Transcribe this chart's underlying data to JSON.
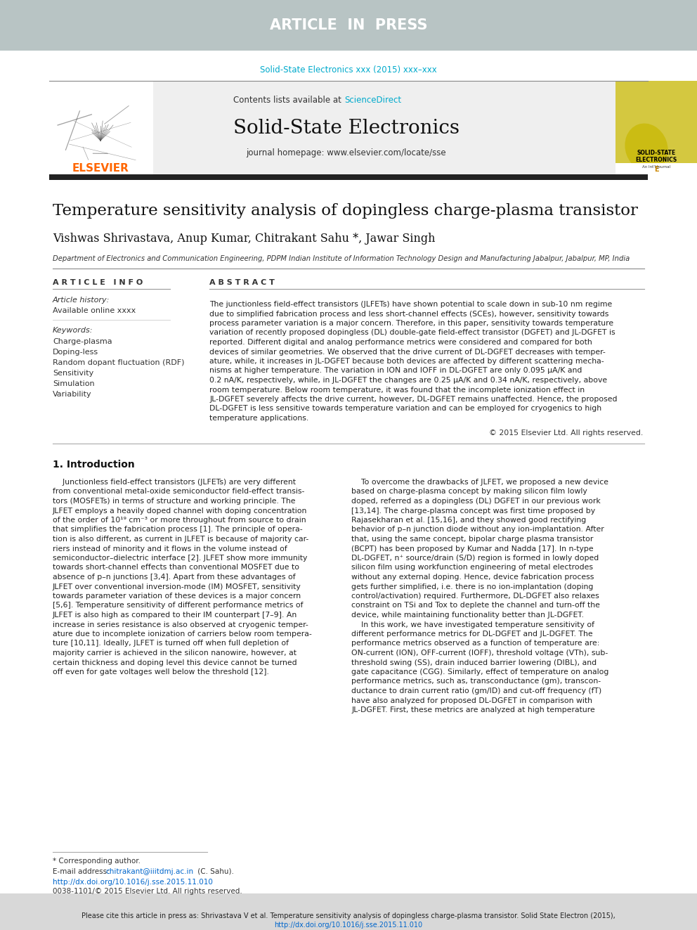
{
  "page_bg": "#ffffff",
  "header_bar_bg": "#b8c4c4",
  "header_text": "ARTICLE  IN  PRESS",
  "header_text_color": "#ffffff",
  "journal_ref_text": "Solid-State Electronics xxx (2015) xxx–xxx",
  "journal_ref_color": "#00aacc",
  "contents_text": "Contents lists available at ",
  "sciencedirect_text": "ScienceDirect",
  "sciencedirect_color": "#00aacc",
  "journal_name": "Solid-State Electronics",
  "journal_homepage": "journal homepage: www.elsevier.com/locate/sse",
  "thick_bar_color": "#222222",
  "article_title": "Temperature sensitivity analysis of dopingless charge-plasma transistor",
  "authors": "Vishwas Shrivastava, Anup Kumar, Chitrakant Sahu *, Jawar Singh",
  "affiliation": "Department of Electronics and Communication Engineering, PDPM Indian Institute of Information Technology Design and Manufacturing Jabalpur, Jabalpur, MP, India",
  "article_info_header": "A R T I C L E   I N F O",
  "abstract_header": "A B S T R A C T",
  "article_history_label": "Article history:",
  "available_online": "Available online xxxx",
  "keywords_label": "Keywords:",
  "keywords": [
    "Charge-plasma",
    "Doping-less",
    "Random dopant fluctuation (RDF)",
    "Sensitivity",
    "Simulation",
    "Variability"
  ],
  "copyright_text": "© 2015 Elsevier Ltd. All rights reserved.",
  "intro_header": "1. Introduction",
  "footer_bg": "#d8d8d8",
  "footer_text1": "Please cite this article in press as: Shrivastava V et al. Temperature sensitivity analysis of dopingless charge-plasma transistor. Solid State Electron (2015),",
  "footer_text2": "http://dx.doi.org/10.1016/j.sse.2015.11.010",
  "footer_link_color": "#0066cc",
  "footnote_text": "* Corresponding author.",
  "footnote_email_prefix": "E-mail address: ",
  "footnote_email": "chitrakant@iiitdmj.ac.in",
  "footnote_email_suffix": " (C. Sahu).",
  "doi_text": "http://dx.doi.org/10.1016/j.sse.2015.11.010",
  "issn_text": "0038-1101/© 2015 Elsevier Ltd. All rights reserved.",
  "elsevier_color": "#ff6600",
  "text_color": "#222222",
  "light_text_color": "#333333"
}
